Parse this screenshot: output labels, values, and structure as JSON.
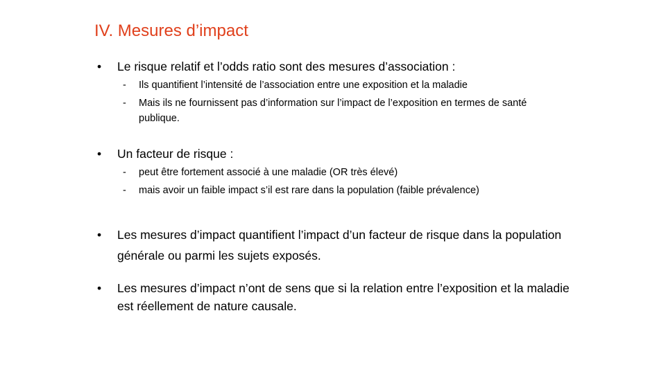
{
  "slide": {
    "title": "IV. Mesures d’impact",
    "accent_color": "#e0401c",
    "bullet_glyph": "•",
    "sub_glyph": "-",
    "bullets": [
      {
        "text": "Le risque relatif et l’odds ratio sont des mesures d’association :",
        "subs": [
          "Ils quantifient l’intensité de l’association entre une exposition et la maladie",
          "Mais ils ne fournissent pas d’information sur l’impact de l’exposition en termes de santé publique."
        ]
      },
      {
        "text": "Un facteur de risque :",
        "subs": [
          "peut être fortement associé à une maladie (OR très élevé)",
          "mais avoir un faible impact s’il est rare dans la population (faible prévalence)"
        ]
      },
      {
        "text": "Les mesures d’impact quantifient l’impact d’un facteur de risque dans la population générale ou parmi les sujets exposés.",
        "subs": []
      },
      {
        "text": "Les mesures d’impact n’ont de sens que si la relation entre l’exposition et la maladie est réellement de nature causale.",
        "subs": []
      }
    ]
  }
}
